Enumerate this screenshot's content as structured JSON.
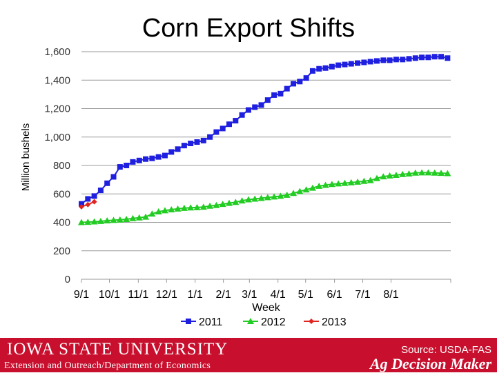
{
  "slide": {
    "title": "Corn Export Shifts",
    "logo_text": "IOWA STATE UNIVERSITY",
    "dept_text": "Extension and Outreach/Department of Economics",
    "source_text": "Source: USDA-FAS",
    "brand_text": "Ag Decision Maker"
  },
  "colors": {
    "series_2011": "#1f1fe0",
    "series_2012": "#22cc22",
    "series_2013": "#e0241f",
    "footer": "#c8102e"
  },
  "chart_data": {
    "type": "line",
    "title": "Corn Export Shifts",
    "xlabel": "Week",
    "ylabel": "Million bushels",
    "ylim": [
      0,
      1600
    ],
    "yticks": [
      0,
      200,
      400,
      600,
      800,
      1000,
      1200,
      1400,
      1600
    ],
    "ytick_labels": [
      "0",
      "200",
      "400",
      "600",
      "800",
      "1,000",
      "1,200",
      "1,400",
      "1,600"
    ],
    "xtick_labels": [
      "9/1",
      "10/1",
      "11/1",
      "12/1",
      "1/1",
      "2/1",
      "3/1",
      "4/1",
      "5/1",
      "6/1",
      "7/1",
      "8/1"
    ],
    "xtick_weeks": [
      0,
      4.35,
      8.85,
      13.25,
      17.7,
      22.1,
      26.15,
      30.6,
      34.9,
      39.4,
      43.8,
      48.2
    ],
    "grid": true,
    "legend": "bottom",
    "series": [
      {
        "name": "2011",
        "marker": "square",
        "values": [
          530,
          565,
          585,
          625,
          675,
          720,
          790,
          800,
          825,
          835,
          845,
          850,
          860,
          870,
          895,
          915,
          940,
          955,
          965,
          975,
          1000,
          1035,
          1060,
          1090,
          1115,
          1155,
          1190,
          1210,
          1225,
          1260,
          1295,
          1305,
          1340,
          1375,
          1390,
          1415,
          1465,
          1480,
          1485,
          1495,
          1505,
          1510,
          1515,
          1520,
          1525,
          1530,
          1535,
          1540,
          1540,
          1545,
          1545,
          1550,
          1555,
          1560,
          1560,
          1565,
          1565,
          1555
        ]
      },
      {
        "name": "2012",
        "marker": "triangle",
        "values": [
          400,
          402,
          405,
          408,
          412,
          415,
          418,
          422,
          428,
          433,
          438,
          460,
          475,
          483,
          490,
          495,
          500,
          503,
          505,
          508,
          515,
          520,
          528,
          535,
          542,
          552,
          560,
          565,
          570,
          575,
          580,
          585,
          592,
          605,
          618,
          630,
          642,
          655,
          662,
          668,
          672,
          676,
          680,
          684,
          690,
          695,
          710,
          722,
          728,
          732,
          738,
          742,
          748,
          750,
          750,
          748,
          746,
          744
        ]
      },
      {
        "name": "2013",
        "marker": "diamond",
        "values": [
          510,
          525,
          545
        ]
      }
    ]
  }
}
